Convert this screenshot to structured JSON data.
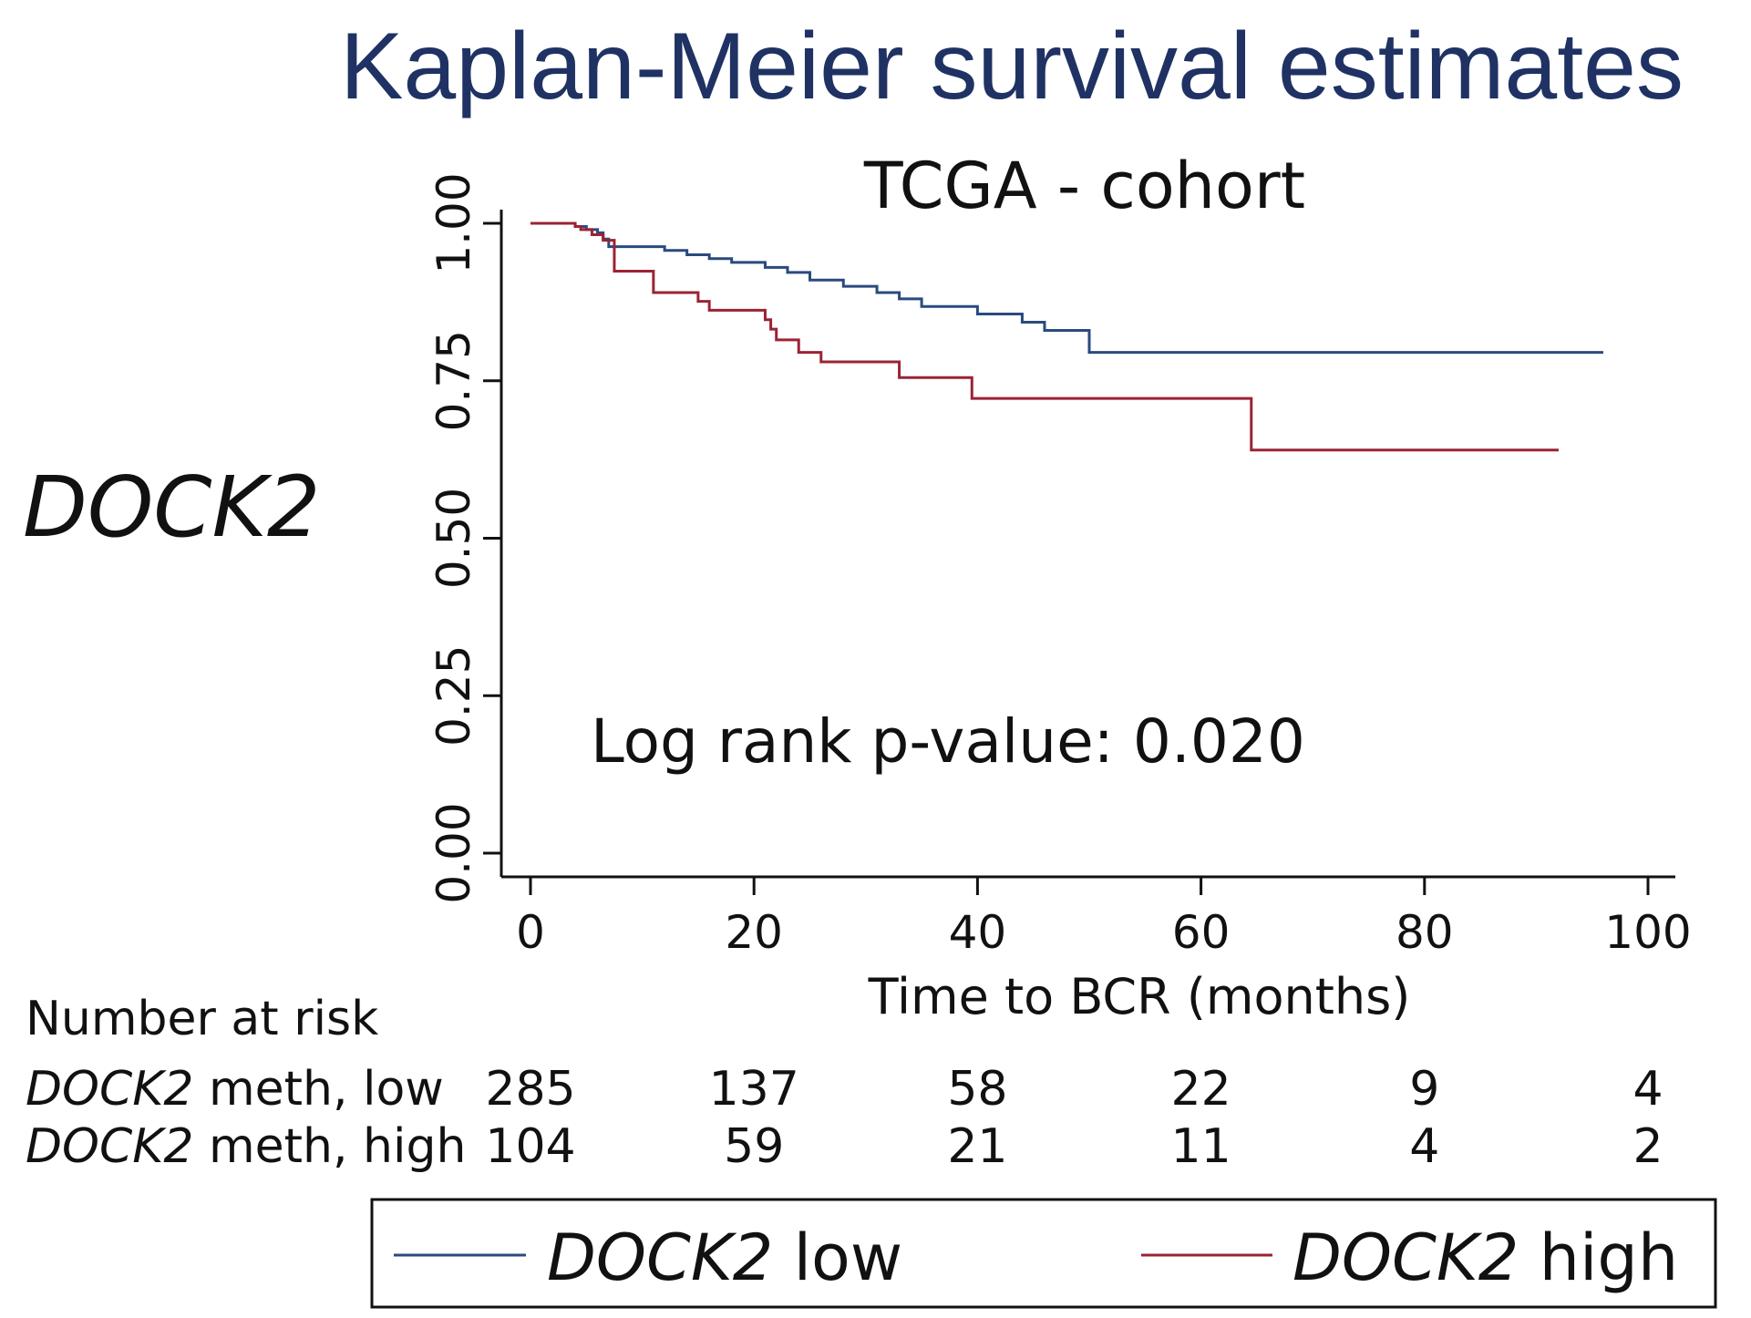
{
  "chart_data": {
    "type": "line",
    "title": "Kaplan-Meier survival estimates",
    "subtitle": "TCGA - cohort",
    "side_label": "DOCK2",
    "xlabel": "Time to BCR (months)",
    "ylabel": "",
    "xlim": [
      0,
      100
    ],
    "ylim": [
      0,
      1
    ],
    "x_ticks": [
      "0",
      "20",
      "40",
      "60",
      "80",
      "100"
    ],
    "x_tick_values": [
      0,
      20,
      40,
      60,
      80,
      100
    ],
    "y_ticks": [
      "0.00",
      "0.25",
      "0.50",
      "0.75",
      "1.00"
    ],
    "y_tick_values": [
      0,
      0.25,
      0.5,
      0.75,
      1.0
    ],
    "annotation": "Log rank p-value: 0.020",
    "series": [
      {
        "name": "DOCK2 low",
        "legend_italic": "DOCK2",
        "legend_rest": " low",
        "color": "#2a4a7f",
        "x": [
          0,
          4,
          5,
          6,
          6.5,
          7,
          12,
          14,
          16,
          18,
          21,
          23,
          25,
          28,
          31,
          33,
          35,
          40,
          44,
          46,
          50,
          96
        ],
        "y": [
          1,
          0.995,
          0.99,
          0.985,
          0.975,
          0.963,
          0.957,
          0.95,
          0.944,
          0.938,
          0.93,
          0.922,
          0.91,
          0.9,
          0.89,
          0.88,
          0.868,
          0.856,
          0.843,
          0.83,
          0.795,
          0.795
        ]
      },
      {
        "name": "DOCK2 high",
        "legend_italic": "DOCK2",
        "legend_rest": " high",
        "color": "#9b2335",
        "x": [
          0,
          4,
          4.5,
          5.5,
          6.5,
          7.5,
          11,
          15,
          16,
          21,
          21.5,
          22,
          24,
          26,
          33,
          39.5,
          64,
          64.5,
          92
        ],
        "y": [
          1,
          0.995,
          0.99,
          0.982,
          0.973,
          0.924,
          0.89,
          0.876,
          0.862,
          0.847,
          0.832,
          0.815,
          0.795,
          0.78,
          0.755,
          0.722,
          0.722,
          0.64,
          0.64
        ]
      }
    ],
    "risk_table": {
      "heading": "Number at risk",
      "rows": [
        {
          "italic": "DOCK2",
          "label": " meth, low",
          "values": [
            "285",
            "137",
            "58",
            "22",
            "9",
            "4"
          ]
        },
        {
          "italic": "DOCK2",
          "label": " meth, high",
          "values": [
            "104",
            "59",
            "21",
            "11",
            "4",
            "2"
          ]
        }
      ]
    },
    "legend_position": "bottom"
  }
}
